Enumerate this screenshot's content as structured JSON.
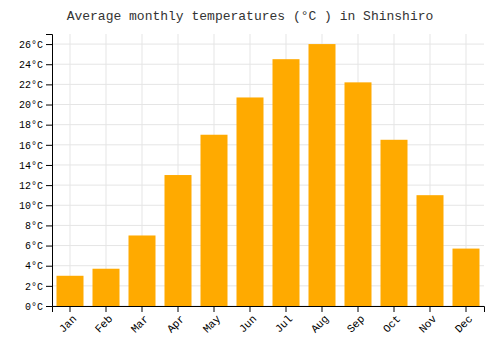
{
  "chart_data": {
    "type": "bar",
    "title": "Average monthly temperatures (°C ) in Shinshiro",
    "categories": [
      "Jan",
      "Feb",
      "Mar",
      "Apr",
      "May",
      "Jun",
      "Jul",
      "Aug",
      "Sep",
      "Oct",
      "Nov",
      "Dec"
    ],
    "values": [
      3.0,
      3.7,
      7.0,
      13.0,
      17.0,
      20.7,
      24.5,
      26.0,
      22.2,
      16.5,
      11.0,
      5.7
    ],
    "color": "#FFAA00",
    "ylim": [
      0,
      27
    ],
    "yticks": [
      {
        "value": 0,
        "label": "0°C"
      },
      {
        "value": 2,
        "label": "2°C"
      },
      {
        "value": 4,
        "label": "4°C"
      },
      {
        "value": 6,
        "label": "6°C"
      },
      {
        "value": 8,
        "label": "8°C"
      },
      {
        "value": 10,
        "label": "10°C"
      },
      {
        "value": 12,
        "label": "12°C"
      },
      {
        "value": 14,
        "label": "14°C"
      },
      {
        "value": 16,
        "label": "16°C"
      },
      {
        "value": 18,
        "label": "18°C"
      },
      {
        "value": 20,
        "label": "20°C"
      },
      {
        "value": 22,
        "label": "22°C"
      },
      {
        "value": 24,
        "label": "24°C"
      },
      {
        "value": 26,
        "label": "26°C"
      }
    ],
    "grid": true
  }
}
